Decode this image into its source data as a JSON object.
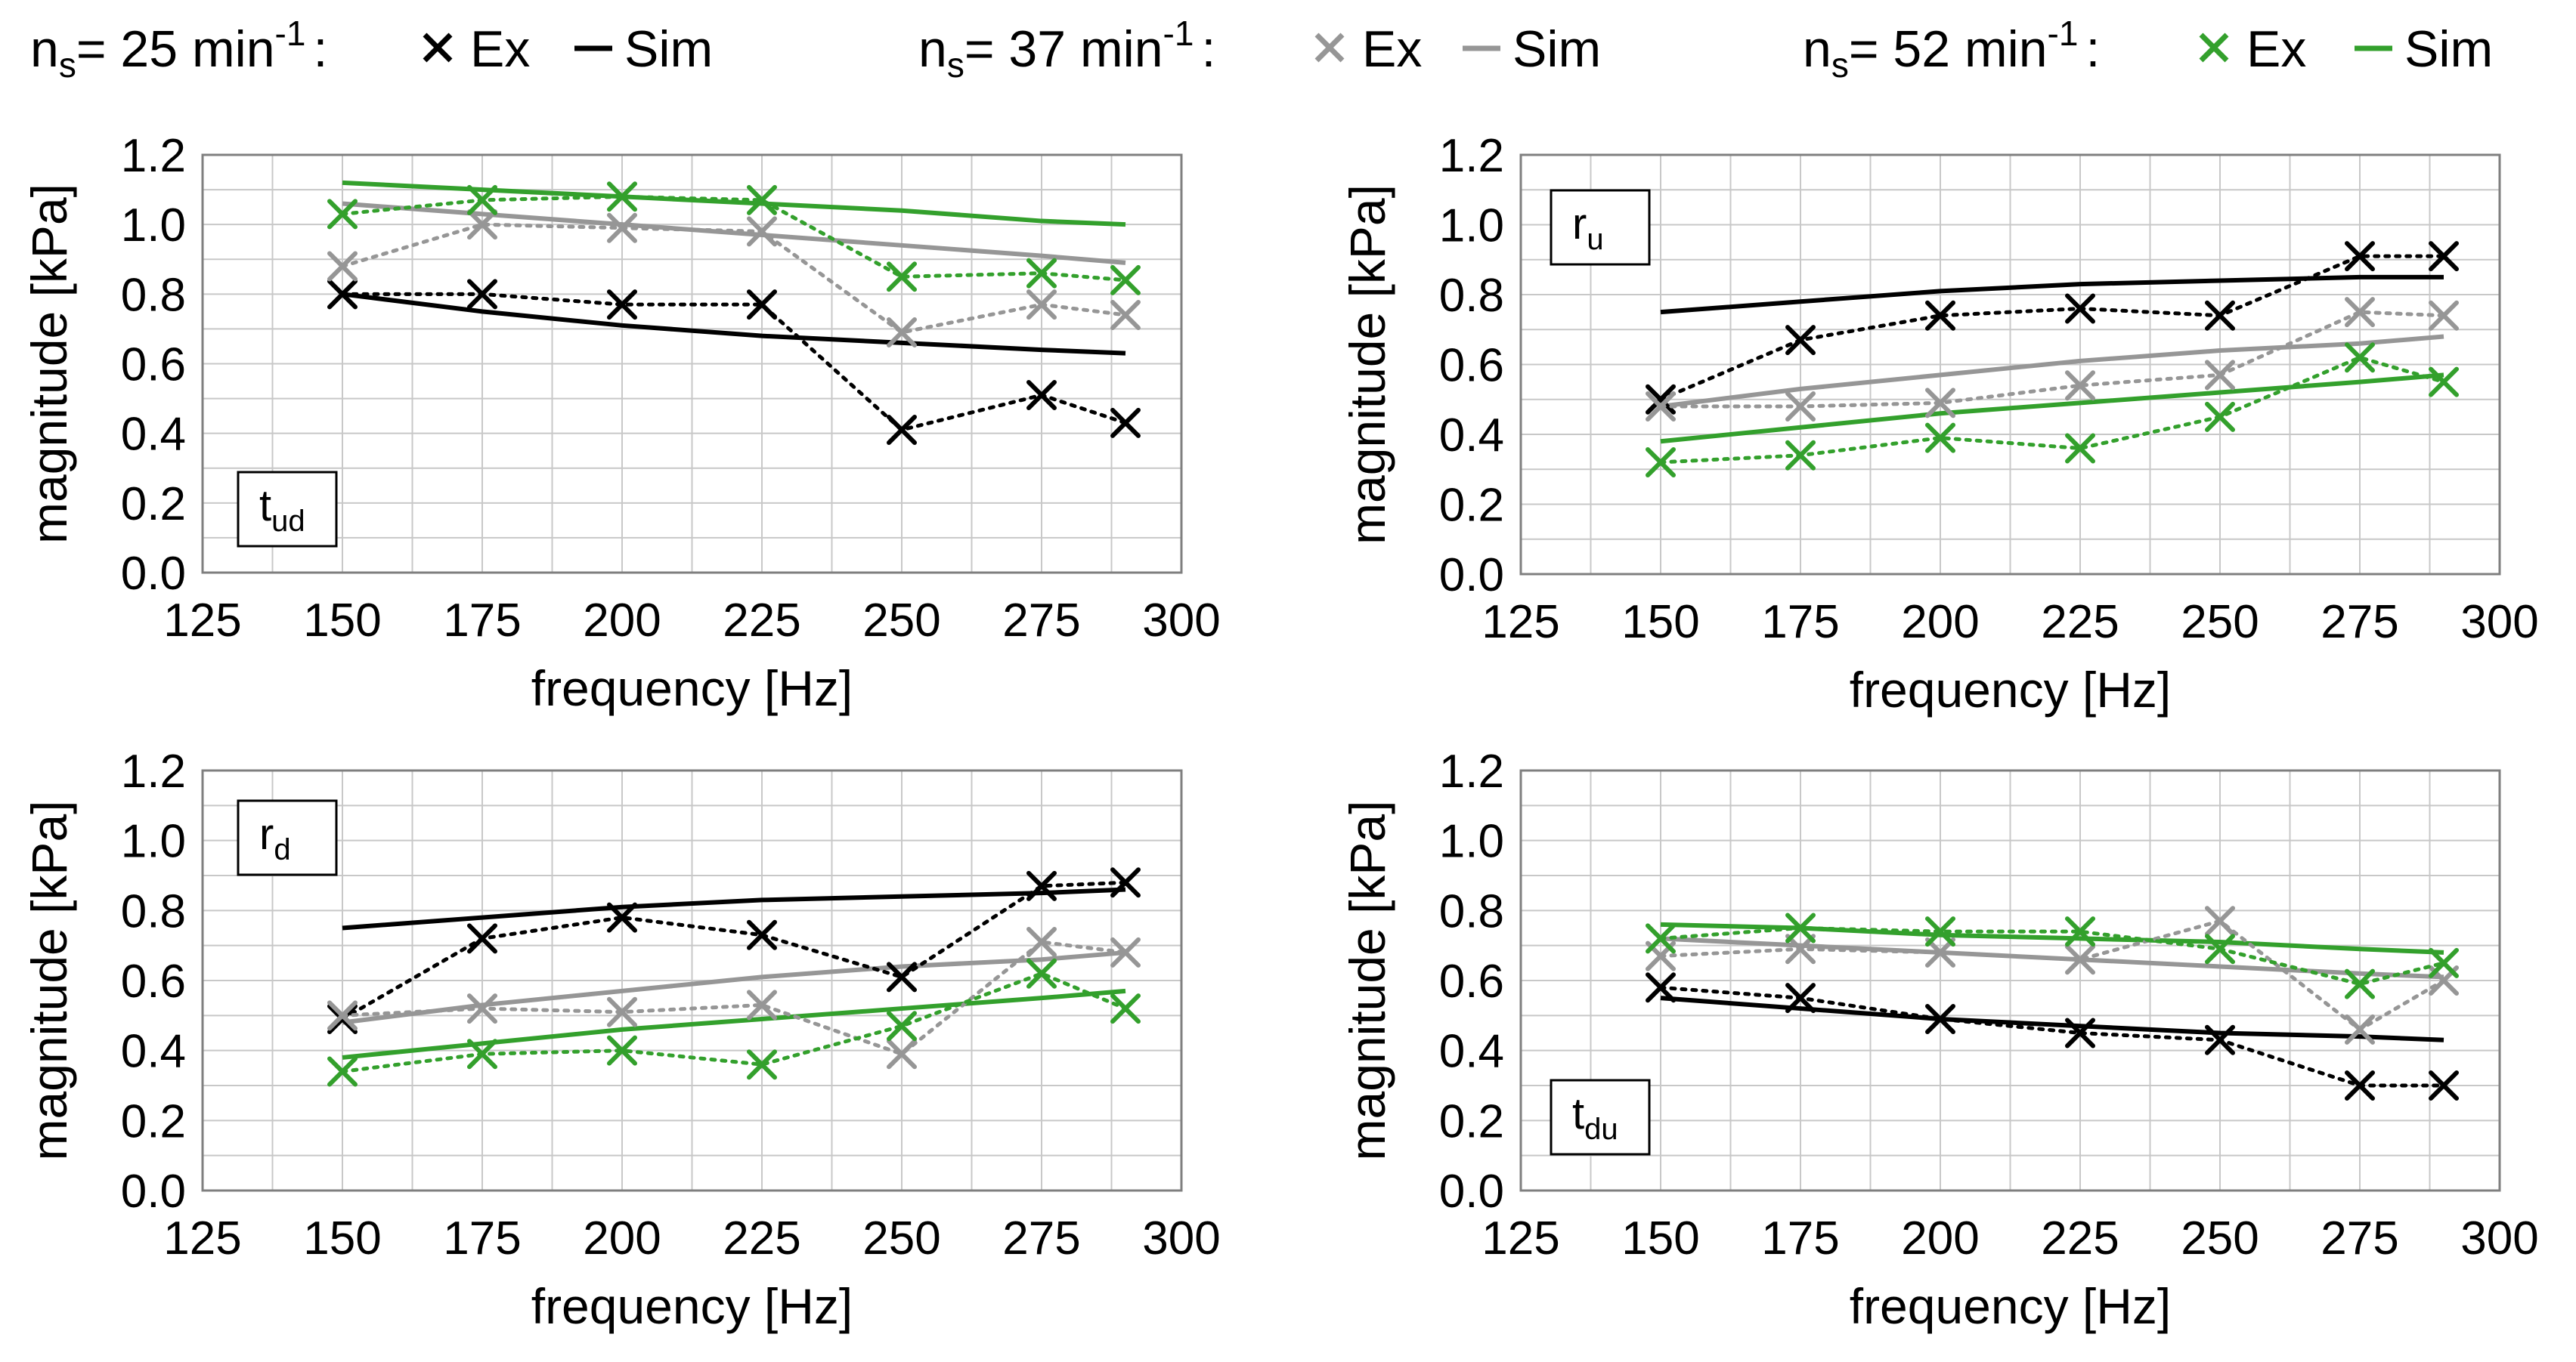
{
  "legend": {
    "groups": [
      {
        "n_main": "n",
        "n_sub": "s",
        "label_mid": "= 25 min",
        "label_sup": "-1",
        "label_end": ":",
        "ex_label": "Ex",
        "sim_label": "Sim",
        "color": "#000000"
      },
      {
        "n_main": "n",
        "n_sub": "s",
        "label_mid": "= 37 min",
        "label_sup": "-1",
        "label_end": ":",
        "ex_label": "Ex",
        "sim_label": "Sim",
        "color": "#969696"
      },
      {
        "n_main": "n",
        "n_sub": "s",
        "label_mid": "= 52 min",
        "label_sup": "-1",
        "label_end": ":",
        "ex_label": "Ex",
        "sim_label": "Sim",
        "color": "#33a02c"
      }
    ]
  },
  "colors": {
    "series_25": "#000000",
    "series_37": "#969696",
    "series_52": "#33a02c",
    "grid": "#c8c8c8",
    "frame": "#7f7f7f"
  },
  "chart_data": [
    {
      "type": "line",
      "label_main": "t",
      "label_sub": "ud",
      "xlabel": "frequency [Hz]",
      "ylabel": "magnitude [kPa]",
      "xlim": [
        125,
        300
      ],
      "ylim": [
        0.0,
        1.2
      ],
      "xticks": [
        "125",
        "150",
        "175",
        "200",
        "225",
        "250",
        "275",
        "300"
      ],
      "yticks": [
        "0.0",
        "0.2",
        "0.4",
        "0.6",
        "0.8",
        "1.0",
        "1.2"
      ],
      "grid": true,
      "series": [
        {
          "name": "25 Ex",
          "kind": "ex",
          "color": "#000000",
          "x": [
            150,
            175,
            200,
            225,
            250,
            275,
            290
          ],
          "y": [
            0.8,
            0.8,
            0.77,
            0.77,
            0.41,
            0.51,
            0.43
          ]
        },
        {
          "name": "37 Ex",
          "kind": "ex",
          "color": "#969696",
          "x": [
            150,
            175,
            200,
            225,
            250,
            275,
            290
          ],
          "y": [
            0.88,
            1.0,
            0.99,
            0.98,
            0.69,
            0.77,
            0.74
          ]
        },
        {
          "name": "52 Ex",
          "kind": "ex",
          "color": "#33a02c",
          "x": [
            150,
            175,
            200,
            225,
            250,
            275,
            290
          ],
          "y": [
            1.03,
            1.07,
            1.08,
            1.07,
            0.85,
            0.86,
            0.84
          ]
        },
        {
          "name": "25 Sim",
          "kind": "sim",
          "color": "#000000",
          "x": [
            150,
            175,
            200,
            225,
            250,
            275,
            290
          ],
          "y": [
            0.8,
            0.75,
            0.71,
            0.68,
            0.66,
            0.64,
            0.63
          ]
        },
        {
          "name": "37 Sim",
          "kind": "sim",
          "color": "#969696",
          "x": [
            150,
            175,
            200,
            225,
            250,
            275,
            290
          ],
          "y": [
            1.06,
            1.03,
            1.0,
            0.97,
            0.94,
            0.91,
            0.89
          ]
        },
        {
          "name": "52 Sim",
          "kind": "sim",
          "color": "#33a02c",
          "x": [
            150,
            175,
            200,
            225,
            250,
            275,
            290
          ],
          "y": [
            1.12,
            1.1,
            1.08,
            1.06,
            1.04,
            1.01,
            1.0
          ]
        }
      ]
    },
    {
      "type": "line",
      "label_main": "r",
      "label_sub": "u",
      "xlabel": "frequency [Hz]",
      "ylabel": "magnitude [kPa]",
      "xlim": [
        125,
        300
      ],
      "ylim": [
        0.0,
        1.2
      ],
      "xticks": [
        "125",
        "150",
        "175",
        "200",
        "225",
        "250",
        "275",
        "300"
      ],
      "yticks": [
        "0.0",
        "0.2",
        "0.4",
        "0.6",
        "0.8",
        "1.0",
        "1.2"
      ],
      "grid": true,
      "series": [
        {
          "name": "25 Ex",
          "kind": "ex",
          "color": "#000000",
          "x": [
            150,
            175,
            200,
            225,
            250,
            275,
            290
          ],
          "y": [
            0.5,
            0.67,
            0.74,
            0.76,
            0.74,
            0.91,
            0.91
          ]
        },
        {
          "name": "37 Ex",
          "kind": "ex",
          "color": "#969696",
          "x": [
            150,
            175,
            200,
            225,
            250,
            275,
            290
          ],
          "y": [
            0.48,
            0.48,
            0.49,
            0.54,
            0.57,
            0.75,
            0.74
          ]
        },
        {
          "name": "52 Ex",
          "kind": "ex",
          "color": "#33a02c",
          "x": [
            150,
            175,
            200,
            225,
            250,
            275,
            290
          ],
          "y": [
            0.32,
            0.34,
            0.39,
            0.36,
            0.45,
            0.62,
            0.55
          ]
        },
        {
          "name": "25 Sim",
          "kind": "sim",
          "color": "#000000",
          "x": [
            150,
            175,
            200,
            225,
            250,
            275,
            290
          ],
          "y": [
            0.75,
            0.78,
            0.81,
            0.83,
            0.84,
            0.85,
            0.85
          ]
        },
        {
          "name": "37 Sim",
          "kind": "sim",
          "color": "#969696",
          "x": [
            150,
            175,
            200,
            225,
            250,
            275,
            290
          ],
          "y": [
            0.48,
            0.53,
            0.57,
            0.61,
            0.64,
            0.66,
            0.68
          ]
        },
        {
          "name": "52 Sim",
          "kind": "sim",
          "color": "#33a02c",
          "x": [
            150,
            175,
            200,
            225,
            250,
            275,
            290
          ],
          "y": [
            0.38,
            0.42,
            0.46,
            0.49,
            0.52,
            0.55,
            0.57
          ]
        }
      ]
    },
    {
      "type": "line",
      "label_main": "r",
      "label_sub": "d",
      "xlabel": "frequency [Hz]",
      "ylabel": "magnitude [kPa]",
      "xlim": [
        125,
        300
      ],
      "ylim": [
        0.0,
        1.2
      ],
      "xticks": [
        "125",
        "150",
        "175",
        "200",
        "225",
        "250",
        "275",
        "300"
      ],
      "yticks": [
        "0.0",
        "0.2",
        "0.4",
        "0.6",
        "0.8",
        "1.0",
        "1.2"
      ],
      "grid": true,
      "series": [
        {
          "name": "25 Ex",
          "kind": "ex",
          "color": "#000000",
          "x": [
            150,
            175,
            200,
            225,
            250,
            275,
            290
          ],
          "y": [
            0.49,
            0.72,
            0.78,
            0.73,
            0.61,
            0.87,
            0.88
          ]
        },
        {
          "name": "37 Ex",
          "kind": "ex",
          "color": "#969696",
          "x": [
            150,
            175,
            200,
            225,
            250,
            275,
            290
          ],
          "y": [
            0.5,
            0.52,
            0.51,
            0.53,
            0.39,
            0.71,
            0.68
          ]
        },
        {
          "name": "52 Ex",
          "kind": "ex",
          "color": "#33a02c",
          "x": [
            150,
            175,
            200,
            225,
            250,
            275,
            290
          ],
          "y": [
            0.34,
            0.39,
            0.4,
            0.36,
            0.47,
            0.62,
            0.52
          ]
        },
        {
          "name": "25 Sim",
          "kind": "sim",
          "color": "#000000",
          "x": [
            150,
            175,
            200,
            225,
            250,
            275,
            290
          ],
          "y": [
            0.75,
            0.78,
            0.81,
            0.83,
            0.84,
            0.85,
            0.86
          ]
        },
        {
          "name": "37 Sim",
          "kind": "sim",
          "color": "#969696",
          "x": [
            150,
            175,
            200,
            225,
            250,
            275,
            290
          ],
          "y": [
            0.48,
            0.53,
            0.57,
            0.61,
            0.64,
            0.66,
            0.68
          ]
        },
        {
          "name": "52 Sim",
          "kind": "sim",
          "color": "#33a02c",
          "x": [
            150,
            175,
            200,
            225,
            250,
            275,
            290
          ],
          "y": [
            0.38,
            0.42,
            0.46,
            0.49,
            0.52,
            0.55,
            0.57
          ]
        }
      ]
    },
    {
      "type": "line",
      "label_main": "t",
      "label_sub": "du",
      "xlabel": "frequency [Hz]",
      "ylabel": "magnitude [kPa]",
      "xlim": [
        125,
        300
      ],
      "ylim": [
        0.0,
        1.2
      ],
      "xticks": [
        "125",
        "150",
        "175",
        "200",
        "225",
        "250",
        "275",
        "300"
      ],
      "yticks": [
        "0.0",
        "0.2",
        "0.4",
        "0.6",
        "0.8",
        "1.0",
        "1.2"
      ],
      "grid": true,
      "series": [
        {
          "name": "25 Ex",
          "kind": "ex",
          "color": "#000000",
          "x": [
            150,
            175,
            200,
            225,
            250,
            275,
            290
          ],
          "y": [
            0.58,
            0.55,
            0.49,
            0.45,
            0.43,
            0.3,
            0.3
          ]
        },
        {
          "name": "37 Ex",
          "kind": "ex",
          "color": "#969696",
          "x": [
            150,
            175,
            200,
            225,
            250,
            275,
            290
          ],
          "y": [
            0.67,
            0.69,
            0.68,
            0.66,
            0.77,
            0.46,
            0.6
          ]
        },
        {
          "name": "52 Ex",
          "kind": "ex",
          "color": "#33a02c",
          "x": [
            150,
            175,
            200,
            225,
            250,
            275,
            290
          ],
          "y": [
            0.72,
            0.75,
            0.74,
            0.74,
            0.69,
            0.59,
            0.65
          ]
        },
        {
          "name": "25 Sim",
          "kind": "sim",
          "color": "#000000",
          "x": [
            150,
            175,
            200,
            225,
            250,
            275,
            290
          ],
          "y": [
            0.55,
            0.52,
            0.49,
            0.47,
            0.45,
            0.44,
            0.43
          ]
        },
        {
          "name": "37 Sim",
          "kind": "sim",
          "color": "#969696",
          "x": [
            150,
            175,
            200,
            225,
            250,
            275,
            290
          ],
          "y": [
            0.72,
            0.7,
            0.68,
            0.66,
            0.64,
            0.62,
            0.61
          ]
        },
        {
          "name": "52 Sim",
          "kind": "sim",
          "color": "#33a02c",
          "x": [
            150,
            175,
            200,
            225,
            250,
            275,
            290
          ],
          "y": [
            0.76,
            0.75,
            0.73,
            0.72,
            0.71,
            0.69,
            0.68
          ]
        }
      ]
    }
  ]
}
